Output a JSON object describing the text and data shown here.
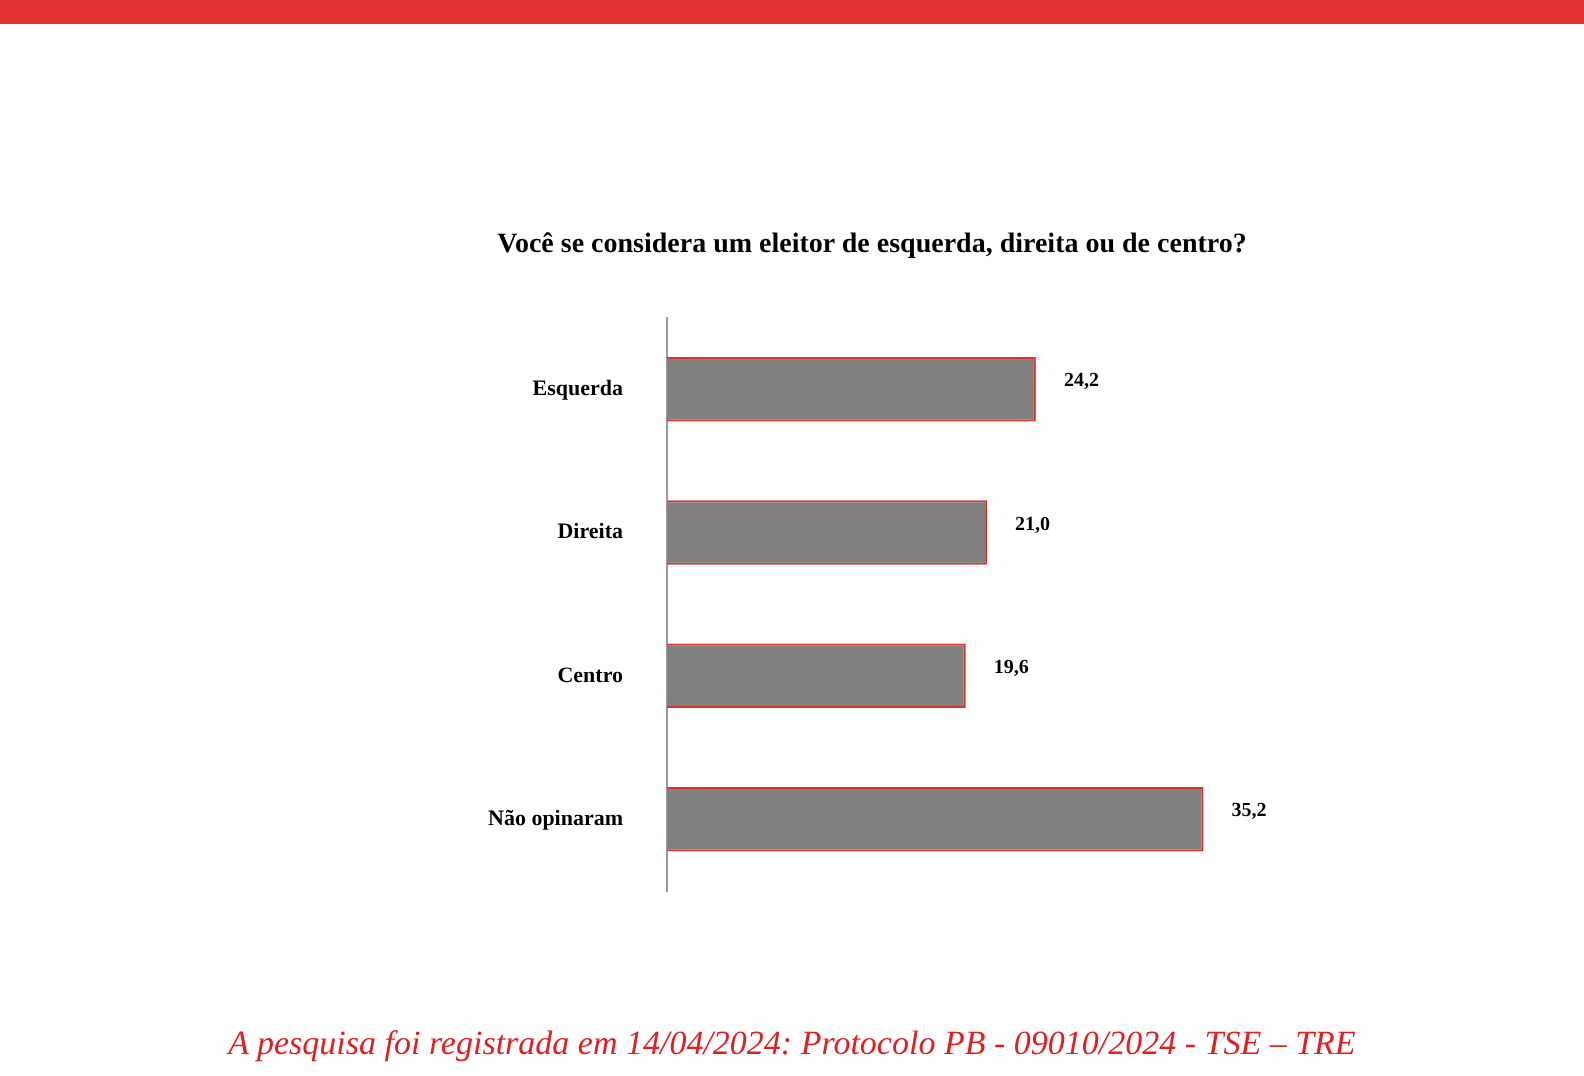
{
  "chart_data": {
    "type": "bar",
    "orientation": "horizontal",
    "title": "Você se considera um eleitor de esquerda, direita ou de centro?",
    "categories": [
      "Esquerda",
      "Direita",
      "Centro",
      "Não opinaram"
    ],
    "values": [
      24.2,
      21.0,
      19.6,
      35.2
    ],
    "value_labels": [
      "24,2",
      "21,0",
      "19,6",
      "35,2"
    ],
    "color": "#808080",
    "grid": false,
    "legend": false,
    "tick_labels": "y",
    "annotations": [
      "A pesquisa foi registrada em 14/04/2024: Protocolo PB - 09010/2024 - TSE – TRE"
    ]
  }
}
